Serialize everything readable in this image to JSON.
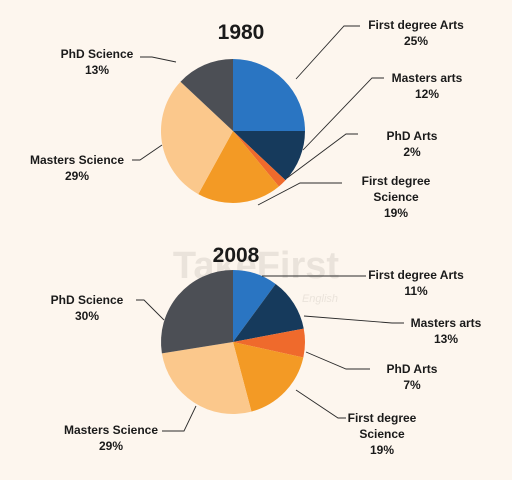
{
  "colors": {
    "background": "#fdf6ee",
    "first_degree_arts": "#2a75c2",
    "masters_arts": "#163a5c",
    "phd_arts": "#ef6a2c",
    "first_degree_science": "#f39a25",
    "masters_science": "#fbc88c",
    "phd_science": "#4c4f55"
  },
  "watermark": {
    "brand": "TakeFirst",
    "tagline": "English"
  },
  "chart_data": [
    {
      "type": "pie",
      "title": "1980",
      "slices": [
        {
          "key": "first_degree_arts",
          "label_lines": [
            "First degree Arts"
          ],
          "value": 25,
          "value_label": "25%"
        },
        {
          "key": "masters_arts",
          "label_lines": [
            "Masters arts"
          ],
          "value": 12,
          "value_label": "12%"
        },
        {
          "key": "phd_arts",
          "label_lines": [
            "PhD Arts"
          ],
          "value": 2,
          "value_label": "2%"
        },
        {
          "key": "first_degree_science",
          "label_lines": [
            "First degree",
            "Science"
          ],
          "value": 19,
          "value_label": "19%"
        },
        {
          "key": "masters_science",
          "label_lines": [
            "Masters Science"
          ],
          "value": 29,
          "value_label": "29%"
        },
        {
          "key": "phd_science",
          "label_lines": [
            "PhD Science"
          ],
          "value": 13,
          "value_label": "13%"
        }
      ]
    },
    {
      "type": "pie",
      "title": "2008",
      "slices": [
        {
          "key": "first_degree_arts",
          "label_lines": [
            "First degree Arts"
          ],
          "value": 11,
          "value_label": "11%"
        },
        {
          "key": "masters_arts",
          "label_lines": [
            "Masters arts"
          ],
          "value": 13,
          "value_label": "13%"
        },
        {
          "key": "phd_arts",
          "label_lines": [
            "PhD Arts"
          ],
          "value": 7,
          "value_label": "7%"
        },
        {
          "key": "first_degree_science",
          "label_lines": [
            "First degree",
            "Science"
          ],
          "value": 19,
          "value_label": "19%"
        },
        {
          "key": "masters_science",
          "label_lines": [
            "Masters Science"
          ],
          "value": 29,
          "value_label": "29%"
        },
        {
          "key": "phd_science",
          "label_lines": [
            "PhD Science"
          ],
          "value": 30,
          "value_label": "30%"
        }
      ]
    }
  ]
}
